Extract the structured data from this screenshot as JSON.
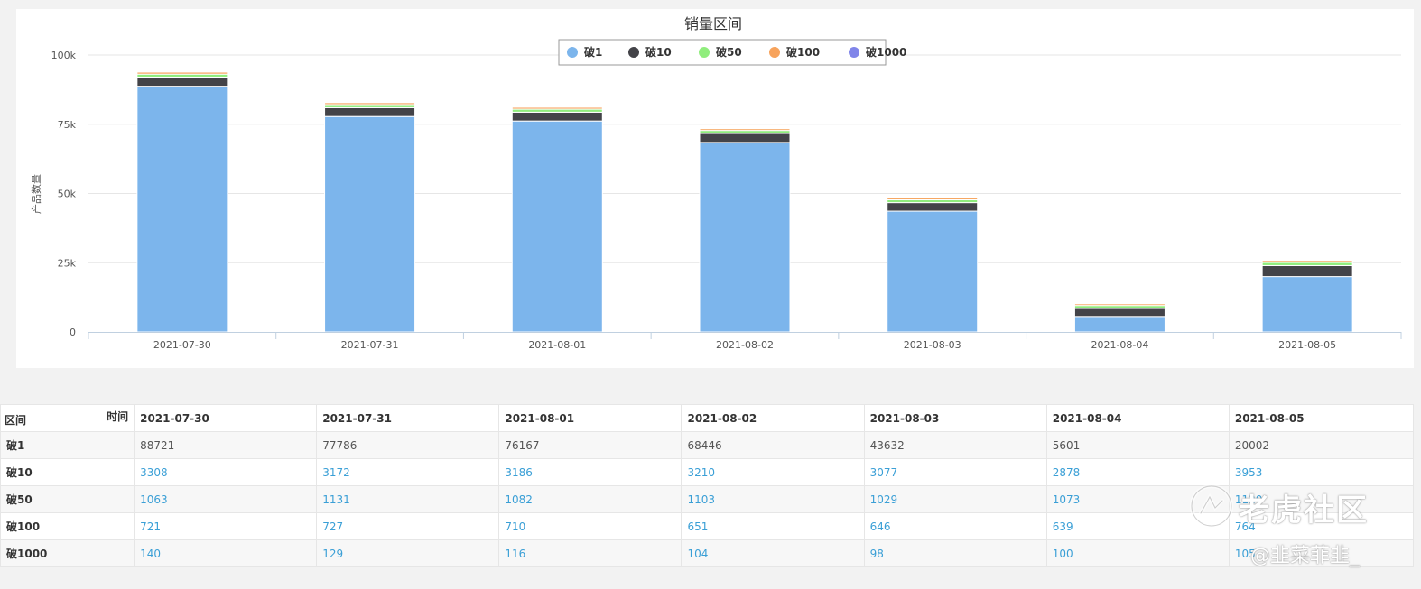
{
  "chart_data": {
    "type": "bar",
    "stacked": true,
    "title": "销量区间",
    "ylabel": "产品数量",
    "xlabel": "",
    "categories": [
      "2021-07-30",
      "2021-07-31",
      "2021-08-01",
      "2021-08-02",
      "2021-08-03",
      "2021-08-04",
      "2021-08-05"
    ],
    "ylim": [
      0,
      100000
    ],
    "yticks": [
      "0",
      "25k",
      "50k",
      "75k",
      "100k"
    ],
    "ytick_values": [
      0,
      25000,
      50000,
      75000,
      100000
    ],
    "grid": true,
    "legend_position": "top-center",
    "series": [
      {
        "name": "破1",
        "color": "#7cb5ec",
        "values": [
          88721,
          77786,
          76167,
          68446,
          43632,
          5601,
          20002
        ]
      },
      {
        "name": "破10",
        "color": "#434348",
        "values": [
          3308,
          3172,
          3186,
          3210,
          3077,
          2878,
          3953
        ]
      },
      {
        "name": "破50",
        "color": "#90ed7d",
        "values": [
          1063,
          1131,
          1082,
          1103,
          1029,
          1073,
          1120
        ]
      },
      {
        "name": "破100",
        "color": "#f7a35c",
        "values": [
          721,
          727,
          710,
          651,
          646,
          639,
          764
        ]
      },
      {
        "name": "破1000",
        "color": "#8085e9",
        "values": [
          140,
          129,
          116,
          104,
          98,
          100,
          105
        ]
      }
    ]
  },
  "table": {
    "corner_top": "时间",
    "corner_bottom": "区间",
    "dates": [
      "2021-07-30",
      "2021-07-31",
      "2021-08-01",
      "2021-08-02",
      "2021-08-03",
      "2021-08-04",
      "2021-08-05"
    ],
    "rows": [
      {
        "label": "破1",
        "values": [
          "88721",
          "77786",
          "76167",
          "68446",
          "43632",
          "5601",
          "20002"
        ]
      },
      {
        "label": "破10",
        "values": [
          "3308",
          "3172",
          "3186",
          "3210",
          "3077",
          "2878",
          "3953"
        ]
      },
      {
        "label": "破50",
        "values": [
          "1063",
          "1131",
          "1082",
          "1103",
          "1029",
          "1073",
          "1120"
        ]
      },
      {
        "label": "破100",
        "values": [
          "721",
          "727",
          "710",
          "651",
          "646",
          "639",
          "764"
        ]
      },
      {
        "label": "破1000",
        "values": [
          "140",
          "129",
          "116",
          "104",
          "98",
          "100",
          "105"
        ]
      }
    ]
  },
  "watermark": {
    "line1": "老虎社区",
    "line2": "@韭菜菲韭_"
  }
}
